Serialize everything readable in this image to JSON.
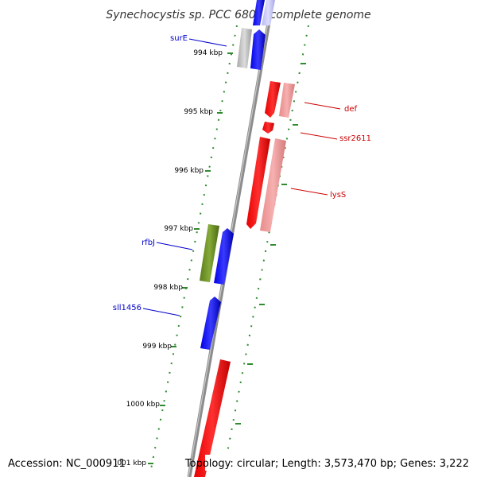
{
  "title": "Synechocystis sp. PCC 6803, complete genome",
  "footer": {
    "accession": "Accession: NC_000911",
    "topology": "Topology: circular; Length: 3,573,470 bp; Genes: 3,222"
  },
  "scale_labels": [
    "994 kbp",
    "995 kbp",
    "996 kbp",
    "997 kbp",
    "998 kbp",
    "999 kbp",
    "1000 kbp",
    "1001 kbp"
  ],
  "genes": [
    {
      "name": "surE",
      "strand": "forward",
      "color": "#0000cc"
    },
    {
      "name": "def",
      "strand": "reverse",
      "color": "#cc0000"
    },
    {
      "name": "ssr2611",
      "strand": "reverse",
      "color": "#cc0000"
    },
    {
      "name": "lysS",
      "strand": "reverse",
      "color": "#cc0000"
    },
    {
      "name": "rfbJ",
      "strand": "forward",
      "color": "#0000cc"
    },
    {
      "name": "sll1456",
      "strand": "forward",
      "color": "#0000cc"
    }
  ],
  "colors": {
    "forward_gene": "#0000ff",
    "reverse_gene": "#ff0000",
    "rfbj_gene": "#6b8e23",
    "backbone": "#888888",
    "ticks": "#2e8b2e"
  }
}
